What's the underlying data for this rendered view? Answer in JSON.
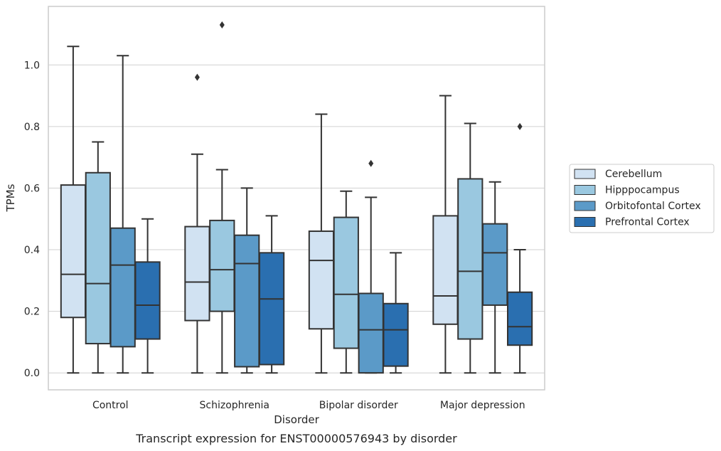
{
  "chart_data": {
    "type": "box",
    "title": "",
    "caption": "Transcript expression for ENST00000576943 by disorder",
    "xlabel": "Disorder",
    "ylabel": "TPMs",
    "ylim": [
      -0.055,
      1.19
    ],
    "yticks": [
      0.0,
      0.2,
      0.4,
      0.6,
      0.8,
      1.0
    ],
    "ytick_labels": [
      "0.0",
      "0.2",
      "0.4",
      "0.6",
      "0.8",
      "1.0"
    ],
    "grid": "horizontal",
    "legend_position": "right",
    "categories": [
      "Control",
      "Schizophrenia",
      "Bipolar disorder",
      "Major depression"
    ],
    "series": [
      {
        "name": "Cerebellum",
        "color": "#d1e2f2",
        "boxes": [
          {
            "whisker_low": 0.0,
            "q1": 0.18,
            "median": 0.32,
            "q3": 0.61,
            "whisker_high": 1.06,
            "outliers": []
          },
          {
            "whisker_low": 0.0,
            "q1": 0.17,
            "median": 0.295,
            "q3": 0.475,
            "whisker_high": 0.71,
            "outliers": [
              0.96
            ]
          },
          {
            "whisker_low": 0.0,
            "q1": 0.143,
            "median": 0.365,
            "q3": 0.46,
            "whisker_high": 0.84,
            "outliers": []
          },
          {
            "whisker_low": 0.0,
            "q1": 0.158,
            "median": 0.25,
            "q3": 0.51,
            "whisker_high": 0.9,
            "outliers": []
          }
        ]
      },
      {
        "name": "Hipppocampus",
        "color": "#9ac8e0",
        "boxes": [
          {
            "whisker_low": 0.0,
            "q1": 0.095,
            "median": 0.29,
            "q3": 0.65,
            "whisker_high": 0.75,
            "outliers": []
          },
          {
            "whisker_low": 0.0,
            "q1": 0.2,
            "median": 0.335,
            "q3": 0.495,
            "whisker_high": 0.66,
            "outliers": [
              1.13
            ]
          },
          {
            "whisker_low": 0.0,
            "q1": 0.08,
            "median": 0.255,
            "q3": 0.505,
            "whisker_high": 0.59,
            "outliers": []
          },
          {
            "whisker_low": 0.0,
            "q1": 0.11,
            "median": 0.33,
            "q3": 0.63,
            "whisker_high": 0.81,
            "outliers": []
          }
        ]
      },
      {
        "name": "Orbitofontal Cortex",
        "color": "#5b9ac8",
        "boxes": [
          {
            "whisker_low": 0.0,
            "q1": 0.085,
            "median": 0.35,
            "q3": 0.47,
            "whisker_high": 1.03,
            "outliers": []
          },
          {
            "whisker_low": 0.0,
            "q1": 0.02,
            "median": 0.355,
            "q3": 0.447,
            "whisker_high": 0.6,
            "outliers": []
          },
          {
            "whisker_low": 0.0,
            "q1": 0.0,
            "median": 0.14,
            "q3": 0.258,
            "whisker_high": 0.57,
            "outliers": [
              0.68
            ]
          },
          {
            "whisker_low": 0.0,
            "q1": 0.22,
            "median": 0.39,
            "q3": 0.484,
            "whisker_high": 0.62,
            "outliers": []
          }
        ]
      },
      {
        "name": "Prefrontal Cortex",
        "color": "#2a6fb0",
        "boxes": [
          {
            "whisker_low": 0.0,
            "q1": 0.11,
            "median": 0.22,
            "q3": 0.36,
            "whisker_high": 0.5,
            "outliers": []
          },
          {
            "whisker_low": 0.0,
            "q1": 0.027,
            "median": 0.24,
            "q3": 0.39,
            "whisker_high": 0.51,
            "outliers": []
          },
          {
            "whisker_low": 0.0,
            "q1": 0.022,
            "median": 0.14,
            "q3": 0.225,
            "whisker_high": 0.39,
            "outliers": []
          },
          {
            "whisker_low": 0.0,
            "q1": 0.09,
            "median": 0.15,
            "q3": 0.262,
            "whisker_high": 0.4,
            "outliers": [
              0.8
            ]
          }
        ]
      }
    ]
  }
}
